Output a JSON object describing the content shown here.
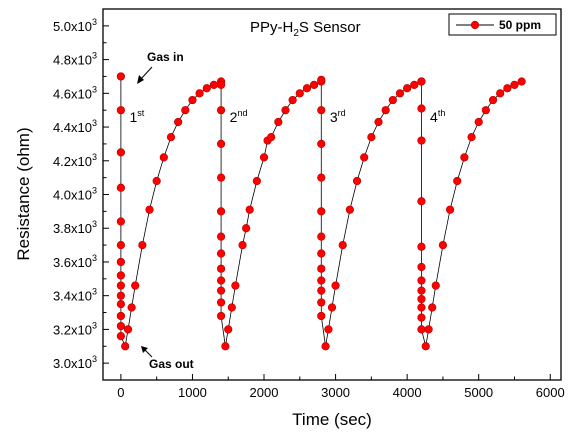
{
  "chart_data": {
    "type": "line",
    "title": "PPy-H2S Sensor",
    "xlabel": "Time (sec)",
    "ylabel": "Resistance (ohm)",
    "xlim": [
      -250,
      6150
    ],
    "ylim": [
      2900,
      5100
    ],
    "x_ticks": [
      0,
      1000,
      2000,
      3000,
      4000,
      5000,
      6000
    ],
    "x_tick_labels": [
      "0",
      "1000",
      "2000",
      "3000",
      "4000",
      "5000",
      "6000"
    ],
    "y_ticks": [
      3000,
      3200,
      3400,
      3600,
      3800,
      4000,
      4200,
      4400,
      4600,
      4800,
      5000
    ],
    "y_tick_labels": [
      {
        "base": "3.0x10",
        "exp": "3"
      },
      {
        "base": "3.2x10",
        "exp": "3"
      },
      {
        "base": "3.4x10",
        "exp": "3"
      },
      {
        "base": "3.6x10",
        "exp": "3"
      },
      {
        "base": "3.8x10",
        "exp": "3"
      },
      {
        "base": "4.0x10",
        "exp": "3"
      },
      {
        "base": "4.2x10",
        "exp": "3"
      },
      {
        "base": "4.4x10",
        "exp": "3"
      },
      {
        "base": "4.6x10",
        "exp": "3"
      },
      {
        "base": "4.8x10",
        "exp": "3"
      },
      {
        "base": "5.0x10",
        "exp": "3"
      }
    ],
    "grid": false,
    "legend_position": "top-right",
    "series": [
      {
        "name": "50 ppm",
        "color": "#ff0000",
        "marker": "circle",
        "x": [
          0,
          0,
          0,
          0,
          0,
          0,
          0,
          0,
          0,
          0,
          0,
          0,
          0,
          0,
          60,
          100,
          150,
          200,
          300,
          400,
          500,
          600,
          700,
          800,
          900,
          1000,
          1100,
          1200,
          1300,
          1400,
          1400,
          1400,
          1400,
          1400,
          1400,
          1400,
          1400,
          1400,
          1400,
          1400,
          1400,
          1400,
          1460,
          1500,
          1550,
          1600,
          1700,
          1750,
          1800,
          1900,
          2000,
          2050,
          2100,
          2200,
          2300,
          2400,
          2500,
          2600,
          2700,
          2800,
          2800,
          2800,
          2800,
          2800,
          2800,
          2800,
          2800,
          2800,
          2800,
          2800,
          2800,
          2800,
          2860,
          2900,
          2950,
          3000,
          3100,
          3200,
          3300,
          3400,
          3500,
          3600,
          3700,
          3800,
          3900,
          4000,
          4100,
          4200,
          4200,
          4200,
          4200,
          4200,
          4200,
          4200,
          4200,
          4200,
          4200,
          4200,
          4200,
          4200,
          4260,
          4300,
          4350,
          4400,
          4500,
          4600,
          4700,
          4800,
          4900,
          5000,
          5100,
          5200,
          5300,
          5400,
          5500,
          5600
        ],
        "y": [
          4700,
          4500,
          4250,
          4040,
          3840,
          3700,
          3600,
          3520,
          3460,
          3400,
          3350,
          3280,
          3220,
          3160,
          3100,
          3200,
          3330,
          3460,
          3700,
          3910,
          4080,
          4220,
          4340,
          4430,
          4500,
          4560,
          4600,
          4630,
          4650,
          4670,
          4650,
          4500,
          4300,
          4100,
          3900,
          3750,
          3650,
          3560,
          3490,
          3430,
          3360,
          3280,
          3100,
          3200,
          3330,
          3460,
          3700,
          3800,
          3910,
          4080,
          4220,
          4320,
          4340,
          4430,
          4500,
          4560,
          4600,
          4630,
          4650,
          4670,
          4680,
          4500,
          4300,
          4100,
          3900,
          3750,
          3650,
          3560,
          3490,
          3430,
          3360,
          3280,
          3100,
          3200,
          3330,
          3460,
          3700,
          3910,
          4080,
          4220,
          4340,
          4430,
          4500,
          4560,
          4600,
          4630,
          4650,
          4670,
          4670,
          4510,
          4320,
          3960,
          3690,
          3570,
          3490,
          3430,
          3380,
          3330,
          3270,
          3200,
          3100,
          3200,
          3330,
          3460,
          3700,
          3910,
          4080,
          4220,
          4340,
          4430,
          4500,
          4560,
          4600,
          4630,
          4650,
          4670
        ]
      }
    ],
    "annotations": {
      "gas_in": "Gas in",
      "gas_out": "Gas out",
      "cycles": [
        {
          "num": "1",
          "sup": "st",
          "x": 120,
          "y": 4430
        },
        {
          "num": "2",
          "sup": "nd",
          "x": 1520,
          "y": 4430
        },
        {
          "num": "3",
          "sup": "rd",
          "x": 2920,
          "y": 4430
        },
        {
          "num": "4",
          "sup": "th",
          "x": 4320,
          "y": 4430
        }
      ]
    }
  }
}
